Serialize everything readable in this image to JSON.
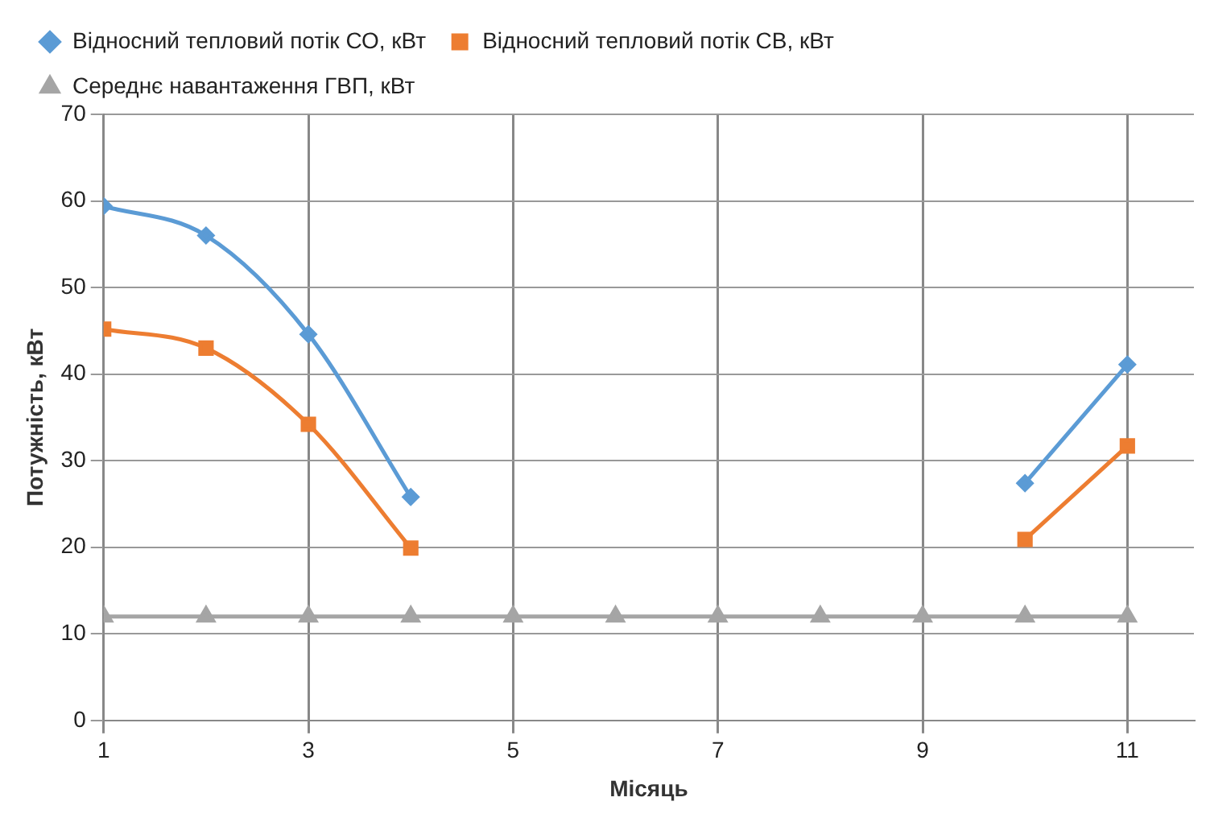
{
  "chart_data": {
    "type": "line",
    "xlabel": "Місяць",
    "ylabel": "Потужність, кВт",
    "xlim": [
      1,
      11.65
    ],
    "xticks": [
      1,
      3,
      5,
      7,
      9,
      11
    ],
    "ylim": [
      0,
      70
    ],
    "yticks": [
      0,
      10,
      20,
      30,
      40,
      50,
      60,
      70
    ],
    "grid": true,
    "legend": "top left",
    "x": [
      1,
      2,
      3,
      4,
      5,
      6,
      7,
      8,
      9,
      10,
      11
    ],
    "series": [
      {
        "name": "Відносний тепловий потік СО, кВт",
        "color": "#5b9bd5",
        "marker": "diamond",
        "values": [
          59.4,
          56,
          44.6,
          25.8,
          null,
          null,
          null,
          null,
          null,
          27.4,
          41.1
        ]
      },
      {
        "name": "Відносний тепловий потік СВ, кВт",
        "color": "#ed7d31",
        "marker": "square",
        "values": [
          45.2,
          43,
          34.2,
          19.9,
          null,
          null,
          null,
          null,
          null,
          20.9,
          31.7
        ]
      },
      {
        "name": "Середнє навантаження ГВП, кВт",
        "color": "#a5a5a5",
        "marker": "triangle",
        "values": [
          12,
          12,
          12,
          12,
          12,
          12,
          12,
          12,
          12,
          12,
          12
        ]
      }
    ]
  }
}
